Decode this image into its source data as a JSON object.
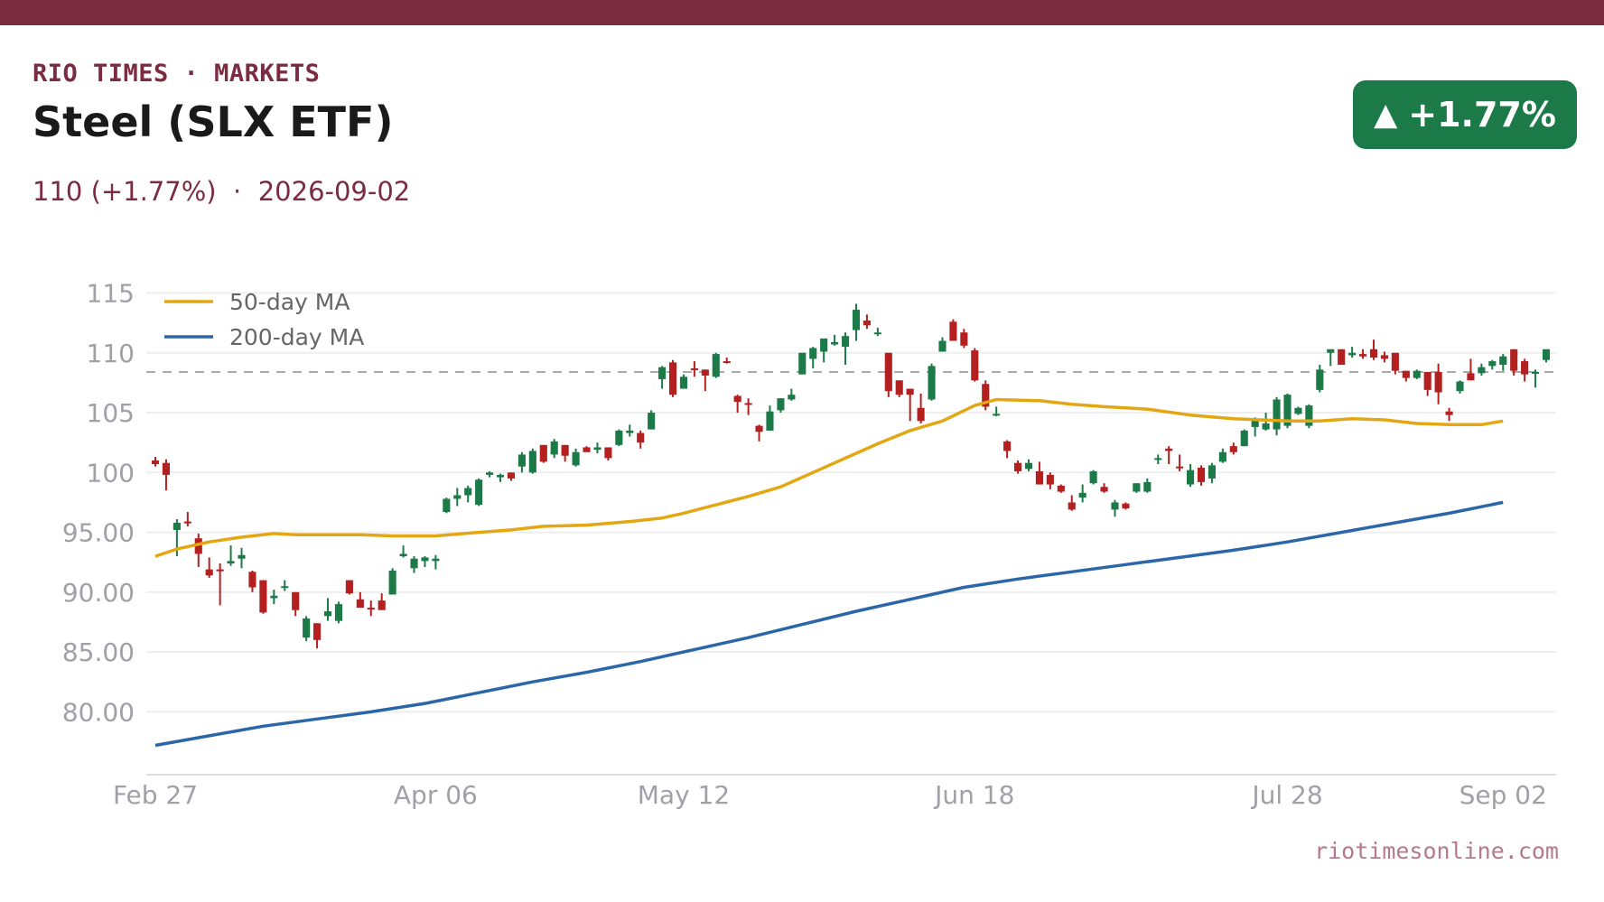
{
  "header": {
    "kicker": "RIO TIMES · MARKETS",
    "title": "Steel (SLX ETF)",
    "subtitle": "110 (+1.77%)  ·  2026-09-02",
    "badge_arrow": "▲",
    "badge_value": "+1.77%",
    "badge_color": "#1c7a48",
    "accent_color": "#7b2c40"
  },
  "footer": {
    "source": "riotimesonline.com"
  },
  "chart_data": {
    "type": "candlestick",
    "title": "Steel (SLX ETF)",
    "ylim": [
      75.5,
      117
    ],
    "y_ticks": [
      115,
      110,
      105,
      100,
      95,
      90,
      85,
      80
    ],
    "y_tick_labels": [
      "115",
      "110",
      "105",
      "100",
      "95.00",
      "90.00",
      "85.00",
      "80.00"
    ],
    "x_tick_labels": [
      "Feb 27",
      "Apr 06",
      "May 12",
      "Jun 18",
      "Jul 28",
      "Sep 02"
    ],
    "x_tick_index": [
      0,
      26,
      49,
      76,
      105,
      125
    ],
    "reference_line": 108.4,
    "legend": {
      "position": "top-left",
      "entries": [
        "50-day MA",
        "200-day MA"
      ]
    },
    "colors": {
      "up": "#1c7a48",
      "down": "#b3201f",
      "ma50": "#e2a712",
      "ma200": "#2b67a8",
      "grid": "#eeeeee",
      "reference": "#aaaaaa"
    },
    "ohlc": [
      [
        101.0,
        101.3,
        100.5,
        100.7
      ],
      [
        100.8,
        101.1,
        98.5,
        99.8
      ],
      [
        95.2,
        96.1,
        93.0,
        95.8
      ],
      [
        95.9,
        96.7,
        95.5,
        95.8
      ],
      [
        94.5,
        94.9,
        92.1,
        93.2
      ],
      [
        91.9,
        92.9,
        91.2,
        91.4
      ],
      [
        91.9,
        92.4,
        88.9,
        91.8
      ],
      [
        92.4,
        93.9,
        92.2,
        92.6
      ],
      [
        92.8,
        93.7,
        92.0,
        93.1
      ],
      [
        91.7,
        91.8,
        90.0,
        90.4
      ],
      [
        91.0,
        91.0,
        88.2,
        88.3
      ],
      [
        89.5,
        90.2,
        89.0,
        89.7
      ],
      [
        90.4,
        91.0,
        90.1,
        90.5
      ],
      [
        90.0,
        90.0,
        88.0,
        88.5
      ],
      [
        86.2,
        88.0,
        85.9,
        87.8
      ],
      [
        87.4,
        87.4,
        85.3,
        86.0
      ],
      [
        88.0,
        89.5,
        87.6,
        88.4
      ],
      [
        87.6,
        89.2,
        87.4,
        89.0
      ],
      [
        91.0,
        91.0,
        89.8,
        89.9
      ],
      [
        89.4,
        90.0,
        88.7,
        88.7
      ],
      [
        88.7,
        89.3,
        88.0,
        88.6
      ],
      [
        89.3,
        89.9,
        88.6,
        88.5
      ],
      [
        89.8,
        92.0,
        89.8,
        91.8
      ],
      [
        93.0,
        93.9,
        92.9,
        93.2
      ],
      [
        92.0,
        93.0,
        91.6,
        92.8
      ],
      [
        92.6,
        93.0,
        92.1,
        92.9
      ],
      [
        92.6,
        93.1,
        91.9,
        92.8
      ],
      [
        96.7,
        97.9,
        96.6,
        97.8
      ],
      [
        97.8,
        98.7,
        97.2,
        98.1
      ],
      [
        98.1,
        98.9,
        97.5,
        98.7
      ],
      [
        97.3,
        99.5,
        97.2,
        99.4
      ],
      [
        99.8,
        100.1,
        99.6,
        100.0
      ],
      [
        99.6,
        99.9,
        99.2,
        99.8
      ],
      [
        100.0,
        100.0,
        99.3,
        99.5
      ],
      [
        100.5,
        101.7,
        100.0,
        101.5
      ],
      [
        100.0,
        102.0,
        99.9,
        101.8
      ],
      [
        102.3,
        102.3,
        100.8,
        100.9
      ],
      [
        101.5,
        102.8,
        101.2,
        102.6
      ],
      [
        102.3,
        102.3,
        100.9,
        101.4
      ],
      [
        100.6,
        102.0,
        100.5,
        101.7
      ],
      [
        102.1,
        102.2,
        101.8,
        101.7
      ],
      [
        101.9,
        102.5,
        101.6,
        102.1
      ],
      [
        102.1,
        102.1,
        101.0,
        101.2
      ],
      [
        102.3,
        103.6,
        102.2,
        103.5
      ],
      [
        103.3,
        104.0,
        103.0,
        103.5
      ],
      [
        103.3,
        103.5,
        102.0,
        102.5
      ],
      [
        103.6,
        105.2,
        103.6,
        105.0
      ],
      [
        107.8,
        108.9,
        107.0,
        108.8
      ],
      [
        109.2,
        109.4,
        106.3,
        106.5
      ],
      [
        107.0,
        108.2,
        107.0,
        108.0
      ],
      [
        108.7,
        109.3,
        108.0,
        108.6
      ],
      [
        108.6,
        108.6,
        106.8,
        108.1
      ],
      [
        108.0,
        110.0,
        107.9,
        109.9
      ],
      [
        109.3,
        109.6,
        109.1,
        109.2
      ],
      [
        106.4,
        106.5,
        105.0,
        105.9
      ],
      [
        105.8,
        106.2,
        104.8,
        105.7
      ],
      [
        103.9,
        104.0,
        102.6,
        103.4
      ],
      [
        103.5,
        105.6,
        103.5,
        105.1
      ],
      [
        105.2,
        106.2,
        105.0,
        106.2
      ],
      [
        106.1,
        107.0,
        106.0,
        106.5
      ],
      [
        108.2,
        110.0,
        108.2,
        110.0
      ],
      [
        109.5,
        110.5,
        108.7,
        110.4
      ],
      [
        110.1,
        111.1,
        109.2,
        111.2
      ],
      [
        110.7,
        111.5,
        110.6,
        110.9
      ],
      [
        110.5,
        111.7,
        109.0,
        111.4
      ],
      [
        111.9,
        114.1,
        111.0,
        113.6
      ],
      [
        112.7,
        113.2,
        112.0,
        112.3
      ],
      [
        111.7,
        112.1,
        111.4,
        111.7
      ],
      [
        110.0,
        110.0,
        106.3,
        106.8
      ],
      [
        107.7,
        107.7,
        106.3,
        106.5
      ],
      [
        107.0,
        107.0,
        104.3,
        106.5
      ],
      [
        105.4,
        106.6,
        104.1,
        104.3
      ],
      [
        106.1,
        109.1,
        106.0,
        108.9
      ],
      [
        110.1,
        111.3,
        110.1,
        111.0
      ],
      [
        112.6,
        112.8,
        111.0,
        111.0
      ],
      [
        111.7,
        112.0,
        110.4,
        110.6
      ],
      [
        110.2,
        110.4,
        107.6,
        107.7
      ],
      [
        107.4,
        107.7,
        105.2,
        105.5
      ],
      [
        104.8,
        105.5,
        104.7,
        104.9
      ],
      [
        102.6,
        102.7,
        101.2,
        101.8
      ],
      [
        100.8,
        101.0,
        99.9,
        100.1
      ],
      [
        100.3,
        101.1,
        100.1,
        100.8
      ],
      [
        100.1,
        100.9,
        99.0,
        99.0
      ],
      [
        99.8,
        100.0,
        98.6,
        99.0
      ],
      [
        98.9,
        99.0,
        98.3,
        98.4
      ],
      [
        97.5,
        98.1,
        96.8,
        96.9
      ],
      [
        97.9,
        99.0,
        97.5,
        98.3
      ],
      [
        99.1,
        100.2,
        99.0,
        100.1
      ],
      [
        98.8,
        99.1,
        98.3,
        98.4
      ],
      [
        96.9,
        97.7,
        96.3,
        97.5
      ],
      [
        97.4,
        97.5,
        96.9,
        97.0
      ],
      [
        98.4,
        99.1,
        98.3,
        99.1
      ],
      [
        98.4,
        99.5,
        98.3,
        99.2
      ],
      [
        101.1,
        101.5,
        100.7,
        101.2
      ],
      [
        102.0,
        102.2,
        100.7,
        101.8
      ],
      [
        100.5,
        101.5,
        100.1,
        100.4
      ],
      [
        99.0,
        100.7,
        98.8,
        100.2
      ],
      [
        100.4,
        100.6,
        98.9,
        99.2
      ],
      [
        99.5,
        100.8,
        99.1,
        100.6
      ],
      [
        100.9,
        102.0,
        100.8,
        101.7
      ],
      [
        102.2,
        102.5,
        101.5,
        101.7
      ],
      [
        102.2,
        103.6,
        102.2,
        103.5
      ],
      [
        103.8,
        104.6,
        103.0,
        104.5
      ],
      [
        103.6,
        105.0,
        103.5,
        104.1
      ],
      [
        103.6,
        106.3,
        103.1,
        106.1
      ],
      [
        103.9,
        106.6,
        103.7,
        106.5
      ],
      [
        104.9,
        105.5,
        104.8,
        105.4
      ],
      [
        103.9,
        105.7,
        103.7,
        105.6
      ],
      [
        106.9,
        109.0,
        106.7,
        108.6
      ],
      [
        110.0,
        110.3,
        108.9,
        110.3
      ],
      [
        110.3,
        110.3,
        109.0,
        109.0
      ],
      [
        109.8,
        110.5,
        109.6,
        110.0
      ],
      [
        109.9,
        110.3,
        109.5,
        109.7
      ],
      [
        110.3,
        111.1,
        109.4,
        109.6
      ],
      [
        109.8,
        110.1,
        109.2,
        109.5
      ],
      [
        110.0,
        110.0,
        108.2,
        108.5
      ],
      [
        108.5,
        108.5,
        107.6,
        107.9
      ],
      [
        107.9,
        108.6,
        107.8,
        108.5
      ],
      [
        108.4,
        108.4,
        106.4,
        106.9
      ],
      [
        108.4,
        109.1,
        105.7,
        106.7
      ],
      [
        105.1,
        105.4,
        104.3,
        104.8
      ],
      [
        106.8,
        107.7,
        106.6,
        107.6
      ],
      [
        108.3,
        109.5,
        107.7,
        107.7
      ],
      [
        108.3,
        109.1,
        108.1,
        108.8
      ],
      [
        108.9,
        109.4,
        108.6,
        109.3
      ],
      [
        109.0,
        109.9,
        108.5,
        109.7
      ],
      [
        110.3,
        110.3,
        108.1,
        108.5
      ],
      [
        109.3,
        109.5,
        107.6,
        108.2
      ],
      [
        108.3,
        108.6,
        107.1,
        108.4
      ],
      [
        109.4,
        110.3,
        109.2,
        110.3
      ]
    ],
    "ma50": [
      [
        0,
        93.0
      ],
      [
        2,
        93.6
      ],
      [
        5,
        94.2
      ],
      [
        8,
        94.6
      ],
      [
        11,
        94.9
      ],
      [
        13,
        94.8
      ],
      [
        16,
        94.8
      ],
      [
        19,
        94.8
      ],
      [
        22,
        94.7
      ],
      [
        25,
        94.7
      ],
      [
        26,
        94.7
      ],
      [
        30,
        95.0
      ],
      [
        33,
        95.2
      ],
      [
        36,
        95.5
      ],
      [
        40,
        95.6
      ],
      [
        44,
        95.9
      ],
      [
        47,
        96.2
      ],
      [
        49,
        96.6
      ],
      [
        52,
        97.3
      ],
      [
        55,
        98.0
      ],
      [
        58,
        98.8
      ],
      [
        61,
        100.0
      ],
      [
        64,
        101.2
      ],
      [
        67,
        102.4
      ],
      [
        70,
        103.5
      ],
      [
        73,
        104.3
      ],
      [
        76,
        105.6
      ],
      [
        78,
        106.1
      ],
      [
        82,
        106.0
      ],
      [
        85,
        105.7
      ],
      [
        88,
        105.5
      ],
      [
        92,
        105.3
      ],
      [
        96,
        104.8
      ],
      [
        100,
        104.5
      ],
      [
        105,
        104.3
      ],
      [
        108,
        104.3
      ],
      [
        111,
        104.5
      ],
      [
        114,
        104.4
      ],
      [
        117,
        104.1
      ],
      [
        120,
        104.0
      ],
      [
        123,
        104.0
      ],
      [
        125,
        104.3
      ]
    ],
    "ma200": [
      [
        0,
        77.2
      ],
      [
        5,
        78.0
      ],
      [
        10,
        78.8
      ],
      [
        15,
        79.4
      ],
      [
        20,
        80.0
      ],
      [
        25,
        80.7
      ],
      [
        30,
        81.6
      ],
      [
        35,
        82.5
      ],
      [
        40,
        83.3
      ],
      [
        45,
        84.2
      ],
      [
        50,
        85.2
      ],
      [
        55,
        86.2
      ],
      [
        60,
        87.3
      ],
      [
        65,
        88.4
      ],
      [
        70,
        89.4
      ],
      [
        75,
        90.4
      ],
      [
        80,
        91.1
      ],
      [
        85,
        91.7
      ],
      [
        90,
        92.3
      ],
      [
        95,
        92.9
      ],
      [
        100,
        93.5
      ],
      [
        105,
        94.2
      ],
      [
        110,
        95.0
      ],
      [
        115,
        95.8
      ],
      [
        120,
        96.6
      ],
      [
        125,
        97.5
      ]
    ]
  }
}
